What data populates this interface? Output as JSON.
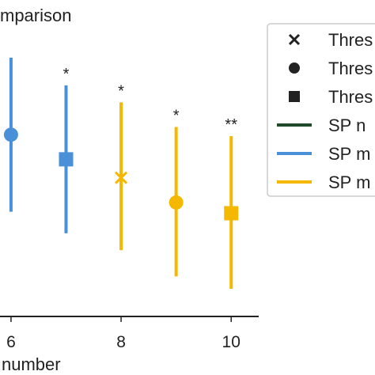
{
  "chart_data": {
    "type": "scatter",
    "title": "mparison",
    "xlabel": "number",
    "x_ticks": [
      "6",
      "8",
      "10"
    ],
    "xlim": [
      5.8,
      10.5
    ],
    "ylim": [
      -1.18,
      0.72
    ],
    "points": [
      {
        "x": 6,
        "y": 0.0,
        "low": -0.5,
        "high": 0.5,
        "marker": "circle",
        "color": "#4a90d9",
        "annotation": ""
      },
      {
        "x": 7,
        "y": -0.16,
        "low": -0.64,
        "high": 0.32,
        "marker": "square",
        "color": "#4a90d9",
        "annotation": "*"
      },
      {
        "x": 8,
        "y": -0.28,
        "low": -0.75,
        "high": 0.21,
        "marker": "x",
        "color": "#f5b800",
        "annotation": "*"
      },
      {
        "x": 9,
        "y": -0.44,
        "low": -0.92,
        "high": 0.05,
        "marker": "circle",
        "color": "#f5b800",
        "annotation": "*"
      },
      {
        "x": 10,
        "y": -0.51,
        "low": -1.0,
        "high": -0.01,
        "marker": "square",
        "color": "#f5b800",
        "annotation": "**"
      }
    ],
    "legend": {
      "placement": "right",
      "entries": [
        {
          "label": "Thres",
          "kind": "marker",
          "marker": "x",
          "color": "#222222"
        },
        {
          "label": "Thres",
          "kind": "marker",
          "marker": "circle",
          "color": "#222222"
        },
        {
          "label": "Thres",
          "kind": "marker",
          "marker": "square",
          "color": "#222222"
        },
        {
          "label": "SP n",
          "kind": "line",
          "color": "#1f4a2c"
        },
        {
          "label": "SP m",
          "kind": "line",
          "color": "#4a90d9"
        },
        {
          "label": "SP m",
          "kind": "line",
          "color": "#f5b800"
        }
      ]
    }
  }
}
